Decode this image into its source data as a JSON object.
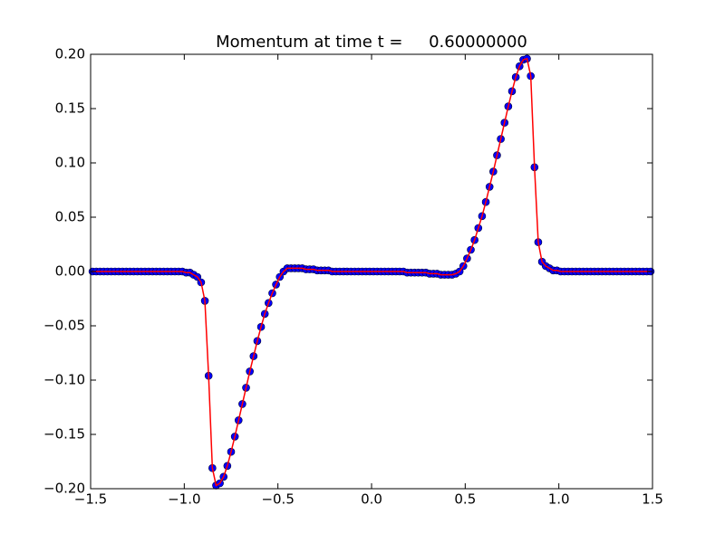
{
  "chart_data": {
    "type": "line_scatter",
    "title": "Momentum at time t =     0.60000000",
    "x": [
      -1.49,
      -1.47,
      -1.45,
      -1.43,
      -1.41,
      -1.39,
      -1.37,
      -1.35,
      -1.33,
      -1.31,
      -1.29,
      -1.27,
      -1.25,
      -1.23,
      -1.21,
      -1.19,
      -1.17,
      -1.15,
      -1.13,
      -1.11,
      -1.09,
      -1.07,
      -1.05,
      -1.03,
      -1.01,
      -0.99,
      -0.97,
      -0.95,
      -0.93,
      -0.91,
      -0.89,
      -0.87,
      -0.85,
      -0.83,
      -0.81,
      -0.79,
      -0.77,
      -0.75,
      -0.73,
      -0.71,
      -0.69,
      -0.67,
      -0.65,
      -0.63,
      -0.61,
      -0.59,
      -0.57,
      -0.55,
      -0.53,
      -0.51,
      -0.49,
      -0.47,
      -0.45,
      -0.43,
      -0.41,
      -0.39,
      -0.37,
      -0.35,
      -0.33,
      -0.31,
      -0.29,
      -0.27,
      -0.25,
      -0.23,
      -0.21,
      -0.19,
      -0.17,
      -0.15,
      -0.13,
      -0.11,
      -0.09,
      -0.07,
      -0.05,
      -0.03,
      -0.01,
      0.01,
      0.03,
      0.05,
      0.07,
      0.09,
      0.11,
      0.13,
      0.15,
      0.17,
      0.19,
      0.21,
      0.23,
      0.25,
      0.27,
      0.29,
      0.31,
      0.33,
      0.35,
      0.37,
      0.39,
      0.41,
      0.43,
      0.45,
      0.47,
      0.49,
      0.51,
      0.53,
      0.55,
      0.57,
      0.59,
      0.61,
      0.63,
      0.65,
      0.67,
      0.69,
      0.71,
      0.73,
      0.75,
      0.77,
      0.79,
      0.81,
      0.83,
      0.85,
      0.87,
      0.89,
      0.91,
      0.93,
      0.95,
      0.97,
      0.99,
      1.01,
      1.03,
      1.05,
      1.07,
      1.09,
      1.11,
      1.13,
      1.15,
      1.17,
      1.19,
      1.21,
      1.23,
      1.25,
      1.27,
      1.29,
      1.31,
      1.33,
      1.35,
      1.37,
      1.39,
      1.41,
      1.43,
      1.45,
      1.47,
      1.49
    ],
    "series": [
      {
        "color": "#0000ff",
        "line_color": "#ff0000",
        "values": [
          0,
          0,
          0,
          0,
          0,
          0,
          0,
          0,
          0,
          0,
          0,
          0,
          0,
          0,
          0,
          0,
          0,
          0,
          0,
          0,
          0,
          0,
          0,
          0,
          0,
          -0.001,
          -0.001,
          -0.003,
          -0.005,
          -0.01,
          -0.027,
          -0.096,
          -0.181,
          -0.197,
          -0.195,
          -0.189,
          -0.179,
          -0.166,
          -0.152,
          -0.137,
          -0.122,
          -0.107,
          -0.092,
          -0.078,
          -0.064,
          -0.051,
          -0.039,
          -0.029,
          -0.02,
          -0.012,
          -0.005,
          0.0,
          0.003,
          0.003,
          0.003,
          0.003,
          0.003,
          0.002,
          0.002,
          0.002,
          0.001,
          0.001,
          0.001,
          0.001,
          0,
          0,
          0,
          0,
          0,
          0,
          0,
          0,
          0,
          0,
          0,
          0,
          0,
          0,
          0,
          0,
          0,
          0,
          0,
          0,
          -0.001,
          -0.001,
          -0.001,
          -0.001,
          -0.001,
          -0.001,
          -0.002,
          -0.002,
          -0.002,
          -0.003,
          -0.003,
          -0.003,
          -0.003,
          -0.002,
          0.0,
          0.005,
          0.012,
          0.02,
          0.029,
          0.04,
          0.051,
          0.064,
          0.078,
          0.092,
          0.107,
          0.122,
          0.137,
          0.152,
          0.166,
          0.179,
          0.189,
          0.195,
          0.196,
          0.18,
          0.096,
          0.027,
          0.009,
          0.005,
          0.003,
          0.001,
          0.001,
          0,
          0,
          0,
          0,
          0,
          0,
          0,
          0,
          0,
          0,
          0,
          0,
          0,
          0,
          0,
          0,
          0,
          0,
          0,
          0,
          0,
          0,
          0,
          0,
          0
        ]
      }
    ],
    "xlim": [
      -1.5,
      1.5
    ],
    "xticks": [
      {
        "value": -1.5,
        "label": "−1.5"
      },
      {
        "value": -1.0,
        "label": "−1.0"
      },
      {
        "value": -0.5,
        "label": "−0.5"
      },
      {
        "value": 0.0,
        "label": "0.0"
      },
      {
        "value": 0.5,
        "label": "0.5"
      },
      {
        "value": 1.0,
        "label": "1.0"
      },
      {
        "value": 1.5,
        "label": "1.5"
      }
    ],
    "ylim": [
      -0.2,
      0.2
    ],
    "yticks": [
      {
        "value": -0.2,
        "label": "−0.20"
      },
      {
        "value": -0.15,
        "label": "−0.15"
      },
      {
        "value": -0.1,
        "label": "−0.10"
      },
      {
        "value": -0.05,
        "label": "−0.05"
      },
      {
        "value": 0.0,
        "label": "0.00"
      },
      {
        "value": 0.05,
        "label": "0.05"
      },
      {
        "value": 0.1,
        "label": "0.10"
      },
      {
        "value": 0.15,
        "label": "0.15"
      },
      {
        "value": 0.2,
        "label": "0.20"
      }
    ],
    "grid": false
  }
}
